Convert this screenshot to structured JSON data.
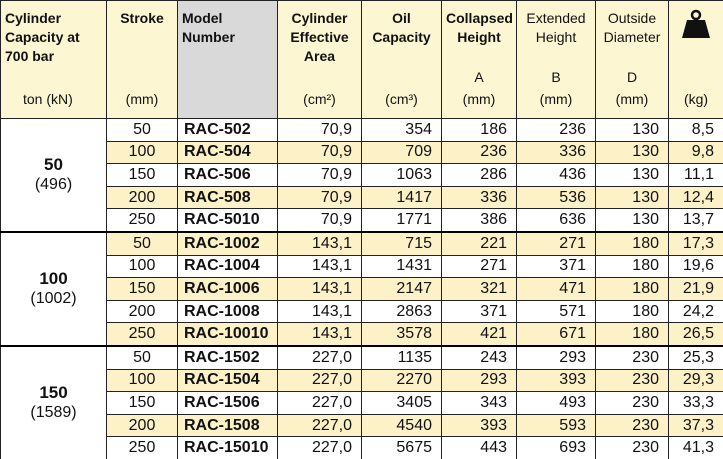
{
  "header": {
    "columns": [
      {
        "title": "Cylinder Capacity at 700 bar",
        "unit": "ton (kN)"
      },
      {
        "title": "Stroke",
        "unit": "(mm)"
      },
      {
        "title": "Model Number"
      },
      {
        "title": "Cylinder Effective Area",
        "unit": "(cm²)"
      },
      {
        "title": "Oil Capacity",
        "unit": "(cm³)"
      },
      {
        "title": "Collapsed Height",
        "letter": "A",
        "unit": "(mm)"
      },
      {
        "title": "Extended Height",
        "letter": "B",
        "unit": "(mm)"
      },
      {
        "title": "Outside Diameter",
        "letter": "D",
        "unit": "(mm)"
      },
      {
        "unit": "(kg)"
      }
    ]
  },
  "groups": [
    {
      "capacity": "50",
      "kn": "(496)",
      "rows": [
        [
          "50",
          "RAC-502",
          "70,9",
          "354",
          "186",
          "236",
          "130",
          "8,5"
        ],
        [
          "100",
          "RAC-504",
          "70,9",
          "709",
          "236",
          "336",
          "130",
          "9,8"
        ],
        [
          "150",
          "RAC-506",
          "70,9",
          "1063",
          "286",
          "436",
          "130",
          "11,1"
        ],
        [
          "200",
          "RAC-508",
          "70,9",
          "1417",
          "336",
          "536",
          "130",
          "12,4"
        ],
        [
          "250",
          "RAC-5010",
          "70,9",
          "1771",
          "386",
          "636",
          "130",
          "13,7"
        ]
      ]
    },
    {
      "capacity": "100",
      "kn": "(1002)",
      "rows": [
        [
          "50",
          "RAC-1002",
          "143,1",
          "715",
          "221",
          "271",
          "180",
          "17,3"
        ],
        [
          "100",
          "RAC-1004",
          "143,1",
          "1431",
          "271",
          "371",
          "180",
          "19,6"
        ],
        [
          "150",
          "RAC-1006",
          "143,1",
          "2147",
          "321",
          "471",
          "180",
          "21,9"
        ],
        [
          "200",
          "RAC-1008",
          "143,1",
          "2863",
          "371",
          "571",
          "180",
          "24,2"
        ],
        [
          "250",
          "RAC-10010",
          "143,1",
          "3578",
          "421",
          "671",
          "180",
          "26,5"
        ]
      ]
    },
    {
      "capacity": "150",
      "kn": "(1589)",
      "rows": [
        [
          "50",
          "RAC-1502",
          "227,0",
          "1135",
          "243",
          "293",
          "230",
          "25,3"
        ],
        [
          "100",
          "RAC-1504",
          "227,0",
          "2270",
          "293",
          "393",
          "230",
          "29,3"
        ],
        [
          "150",
          "RAC-1506",
          "227,0",
          "3405",
          "343",
          "493",
          "230",
          "33,3"
        ],
        [
          "200",
          "RAC-1508",
          "227,0",
          "4540",
          "393",
          "593",
          "230",
          "37,3"
        ],
        [
          "250",
          "RAC-15010",
          "227,0",
          "5675",
          "443",
          "693",
          "230",
          "41,3"
        ]
      ]
    }
  ]
}
